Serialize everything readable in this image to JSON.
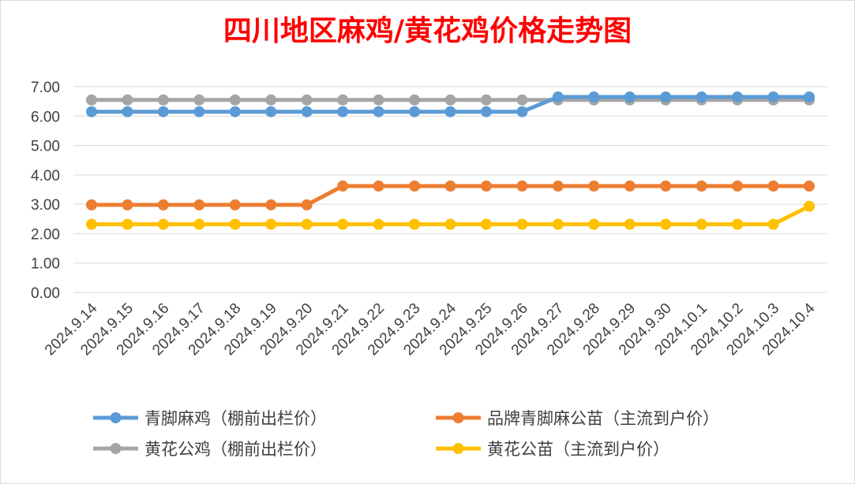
{
  "chart_data": {
    "type": "line",
    "title": "四川地区麻鸡/黄花鸡价格走势图",
    "xlabel": "",
    "ylabel": "",
    "ylim": [
      0,
      7
    ],
    "y_ticks": [
      "0.00",
      "1.00",
      "2.00",
      "3.00",
      "4.00",
      "5.00",
      "6.00",
      "7.00"
    ],
    "grid": "horizontal",
    "legend_position": "bottom",
    "categories": [
      "2024.9.14",
      "2024.9.15",
      "2024.9.16",
      "2024.9.17",
      "2024.9.18",
      "2024.9.19",
      "2024.9.20",
      "2024.9.21",
      "2024.9.22",
      "2024.9.23",
      "2024.9.24",
      "2024.9.25",
      "2024.9.26",
      "2024.9.27",
      "2024.9.28",
      "2024.9.29",
      "2024.9.30",
      "2024.10.1",
      "2024.10.2",
      "2024.10.3",
      "2024.10.4"
    ],
    "series": [
      {
        "name": "青脚麻鸡（棚前出栏价）",
        "color": "#5b9bd5",
        "values": [
          6.15,
          6.15,
          6.15,
          6.15,
          6.15,
          6.15,
          6.15,
          6.15,
          6.15,
          6.15,
          6.15,
          6.15,
          6.15,
          6.65,
          6.65,
          6.65,
          6.65,
          6.65,
          6.65,
          6.65,
          6.65
        ]
      },
      {
        "name": "品牌青脚麻公苗（主流到户价）",
        "color": "#ed7d31",
        "values": [
          2.98,
          2.98,
          2.98,
          2.98,
          2.98,
          2.98,
          2.98,
          3.62,
          3.62,
          3.62,
          3.62,
          3.62,
          3.62,
          3.62,
          3.62,
          3.62,
          3.62,
          3.62,
          3.62,
          3.62,
          3.62
        ]
      },
      {
        "name": "黄花公鸡（棚前出栏价）",
        "color": "#a5a5a5",
        "values": [
          6.55,
          6.55,
          6.55,
          6.55,
          6.55,
          6.55,
          6.55,
          6.55,
          6.55,
          6.55,
          6.55,
          6.55,
          6.55,
          6.55,
          6.55,
          6.55,
          6.55,
          6.55,
          6.55,
          6.55,
          6.55
        ]
      },
      {
        "name": "黄花公苗（主流到户价）",
        "color": "#ffc000",
        "values": [
          2.32,
          2.32,
          2.32,
          2.32,
          2.32,
          2.32,
          2.32,
          2.32,
          2.32,
          2.32,
          2.32,
          2.32,
          2.32,
          2.32,
          2.32,
          2.32,
          2.32,
          2.32,
          2.32,
          2.32,
          2.93
        ]
      }
    ],
    "draw_order": [
      2,
      1,
      3,
      0
    ],
    "legend_order": [
      0,
      1,
      2,
      3
    ]
  }
}
